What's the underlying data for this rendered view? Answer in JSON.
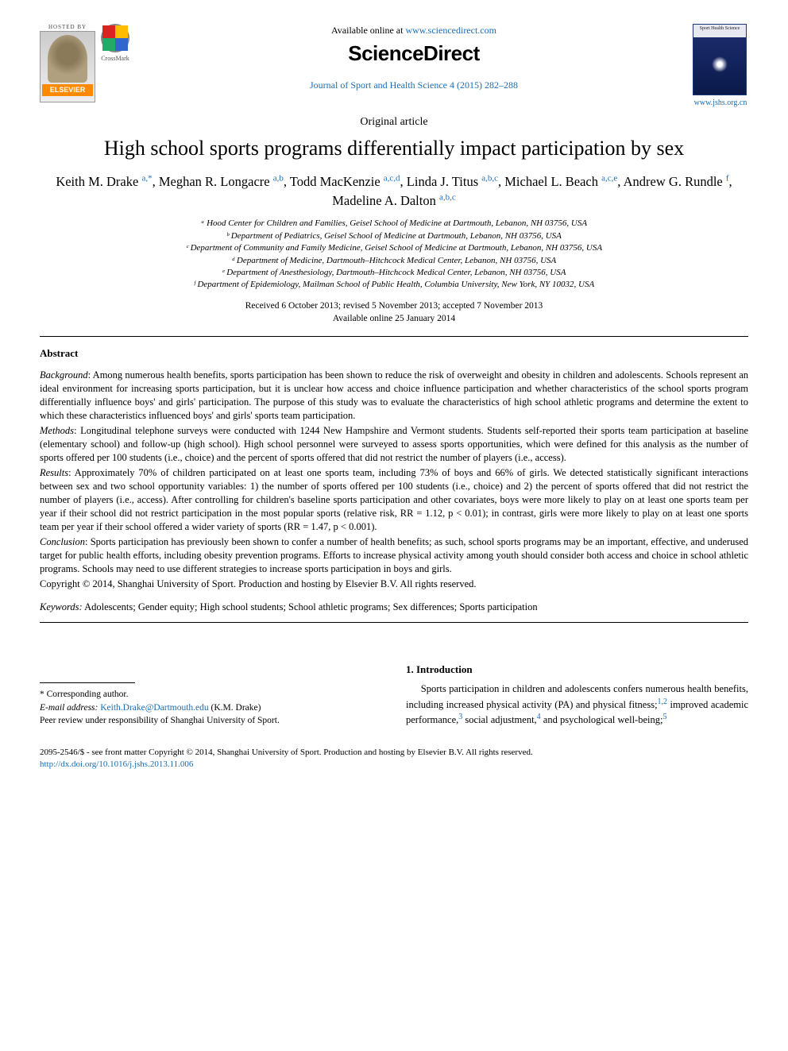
{
  "header": {
    "hosted_by": "HOSTED BY",
    "elsevier": "ELSEVIER",
    "crossmark": "CrossMark",
    "available_prefix": "Available online at ",
    "available_url": "www.sciencedirect.com",
    "sd_logo": "ScienceDirect",
    "journal_ref": "Journal of Sport and Health Science 4 (2015) 282–288",
    "journal_cover_title": "Sport Health Science",
    "journal_site": "www.jshs.org.cn"
  },
  "article": {
    "type": "Original article",
    "title": "High school sports programs differentially impact participation by sex",
    "authors_html": "Keith M. Drake <sup>a,*</sup>, Meghan R. Longacre <sup>a,b</sup>, Todd MacKenzie <sup>a,c,d</sup>, Linda J. Titus <sup>a,b,c</sup>, Michael L. Beach <sup>a,c,e</sup>, Andrew G. Rundle <sup>f</sup>, Madeline A. Dalton <sup>a,b,c</sup>",
    "affiliations": [
      "ᵃ Hood Center for Children and Families, Geisel School of Medicine at Dartmouth, Lebanon, NH 03756, USA",
      "ᵇ Department of Pediatrics, Geisel School of Medicine at Dartmouth, Lebanon, NH 03756, USA",
      "ᶜ Department of Community and Family Medicine, Geisel School of Medicine at Dartmouth, Lebanon, NH 03756, USA",
      "ᵈ Department of Medicine, Dartmouth–Hitchcock Medical Center, Lebanon, NH 03756, USA",
      "ᵉ Department of Anesthesiology, Dartmouth–Hitchcock Medical Center, Lebanon, NH 03756, USA",
      "ᶠ Department of Epidemiology, Mailman School of Public Health, Columbia University, New York, NY 10032, USA"
    ],
    "dates_line1": "Received 6 October 2013; revised 5 November 2013; accepted 7 November 2013",
    "dates_line2": "Available online 25 January 2014"
  },
  "abstract": {
    "heading": "Abstract",
    "background_label": "Background",
    "background": ": Among numerous health benefits, sports participation has been shown to reduce the risk of overweight and obesity in children and adolescents. Schools represent an ideal environment for increasing sports participation, but it is unclear how access and choice influence participation and whether characteristics of the school sports program differentially influence boys' and girls' participation. The purpose of this study was to evaluate the characteristics of high school athletic programs and determine the extent to which these characteristics influenced boys' and girls' sports team participation.",
    "methods_label": "Methods",
    "methods": ": Longitudinal telephone surveys were conducted with 1244 New Hampshire and Vermont students. Students self-reported their sports team participation at baseline (elementary school) and follow-up (high school). High school personnel were surveyed to assess sports opportunities, which were defined for this analysis as the number of sports offered per 100 students (i.e., choice) and the percent of sports offered that did not restrict the number of players (i.e., access).",
    "results_label": "Results",
    "results": ": Approximately 70% of children participated on at least one sports team, including 73% of boys and 66% of girls. We detected statistically significant interactions between sex and two school opportunity variables: 1) the number of sports offered per 100 students (i.e., choice) and 2) the percent of sports offered that did not restrict the number of players (i.e., access). After controlling for children's baseline sports participation and other covariates, boys were more likely to play on at least one sports team per year if their school did not restrict participation in the most popular sports (relative risk, RR = 1.12, p < 0.01); in contrast, girls were more likely to play on at least one sports team per year if their school offered a wider variety of sports (RR = 1.47, p < 0.001).",
    "conclusion_label": "Conclusion",
    "conclusion": ": Sports participation has previously been shown to confer a number of health benefits; as such, school sports programs may be an important, effective, and underused target for public health efforts, including obesity prevention programs. Efforts to increase physical activity among youth should consider both access and choice in school athletic programs. Schools may need to use different strategies to increase sports participation in boys and girls.",
    "copyright": "Copyright © 2014, Shanghai University of Sport. Production and hosting by Elsevier B.V. All rights reserved.",
    "keywords_label": "Keywords:",
    "keywords": " Adolescents; Gender equity; High school students; School athletic programs; Sex differences; Sports participation"
  },
  "intro": {
    "heading": "1. Introduction",
    "text": "Sports participation in children and adolescents confers numerous health benefits, including increased physical activity (PA) and physical fitness;¹,² improved academic performance,³ social adjustment,⁴ and psychological well-being;⁵"
  },
  "corresponding": {
    "star": "* Corresponding author.",
    "email_label": "E-mail address: ",
    "email": "Keith.Drake@Dartmouth.edu",
    "email_suffix": " (K.M. Drake)",
    "peer": "Peer review under responsibility of Shanghai University of Sport."
  },
  "footer": {
    "line": "2095-2546/$ - see front matter Copyright © 2014, Shanghai University of Sport. Production and hosting by Elsevier B.V. All rights reserved.",
    "doi": "http://dx.doi.org/10.1016/j.jshs.2013.11.006"
  },
  "colors": {
    "link": "#1a6db5",
    "text": "#000000",
    "bg": "#ffffff"
  }
}
